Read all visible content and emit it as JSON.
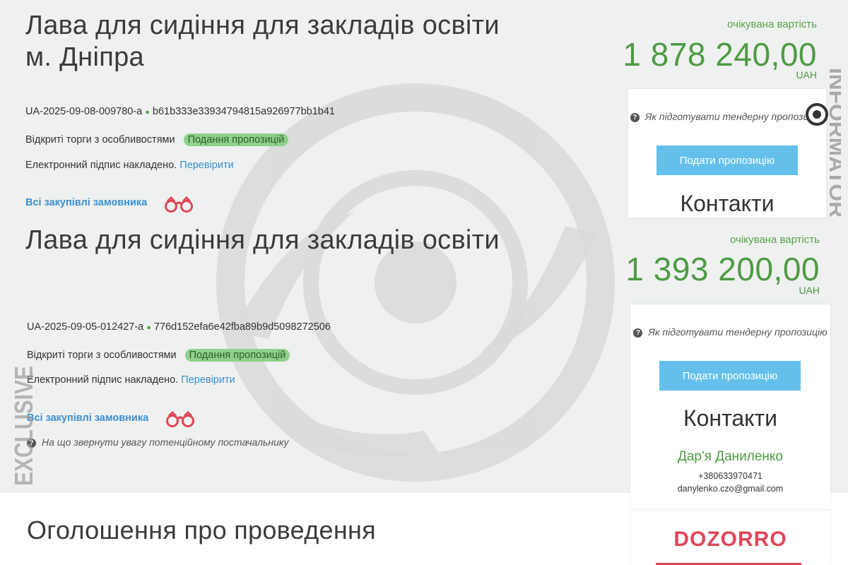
{
  "tenders": [
    {
      "title_line1": "Лава для сидіння для закладів освіти",
      "title_line2": "м. Дніпра",
      "id": "UA-2025-09-08-009780-a",
      "hash": "b61b333e33934794815a926977bb1b41",
      "procedure": "Відкриті торги з особливостями",
      "status": "Подання пропозицій",
      "signature_text": "Електронний підпис накладено.",
      "verify_link": "Перевірити",
      "all_purchases": "Всі закупівлі замовника",
      "expected_label": "очікувана вартість",
      "expected_amount": "1 878 240,00",
      "currency": "UAH",
      "howto": "Як підготувати тендерну пропозицію",
      "submit": "Подати пропозицію",
      "contacts_title": "Контакти"
    },
    {
      "title_line1": "Лава для сидіння для закладів освіти",
      "id": "UA-2025-09-05-012427-a",
      "hash": "776d152efa6e42fba89b9d5098272506",
      "procedure": "Відкриті торги з особливостями",
      "status": "Подання пропозицій",
      "signature_text": "Електронний підпис накладено.",
      "verify_link": "Перевірити",
      "all_purchases": "Всі закупівлі замовника",
      "attention_note": "На що звернути увагу потенційному постачальнику",
      "expected_label": "очікувана вартість",
      "expected_amount": "1 393 200,00",
      "currency": "UAH",
      "howto": "Як підготувати тендерну пропозицію",
      "submit": "Подати пропозицію",
      "contacts_title": "Контакти",
      "contact_name": "Дар'я Даниленко",
      "contact_phone": "+380633970471",
      "contact_email": "danylenko.czo@gmail.com"
    }
  ],
  "announcement_title": "Оголошення про проведення",
  "dozorro_logo": "DOZORRO",
  "watermarks": {
    "informator": "INFORMATOR",
    "exclusive": "EXCLUSIVE"
  },
  "colors": {
    "accent_green": "#4e9a44",
    "link_blue": "#3a8fd3",
    "button_blue": "#64c0ea",
    "status_badge": "#8fd18a",
    "dozorro_red": "#e04658"
  },
  "icons": {
    "binoculars": "binoculars-icon",
    "question": "question-circle-icon"
  }
}
